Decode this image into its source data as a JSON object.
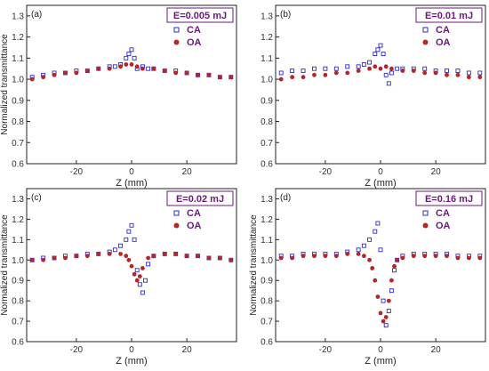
{
  "chart_data": [
    {
      "panel_label": "(a)",
      "type": "scatter",
      "legend_title": "E=0.005 mJ",
      "xlabel": "Z (mm)",
      "ylabel": "Normalized transmittance",
      "xlim": [
        -38,
        38
      ],
      "ylim": [
        0.6,
        1.35
      ],
      "xticks": [
        "-20",
        "0",
        "20"
      ],
      "yticks": [
        "0.6",
        "0.7",
        "0.8",
        "0.9",
        "1.0",
        "1.1",
        "1.2",
        "1.3"
      ],
      "series": [
        {
          "name": "CA",
          "marker": "open-square",
          "color": "#2a2ad0",
          "x": [
            -36,
            -32,
            -28,
            -24,
            -20,
            -16,
            -12,
            -8,
            -6,
            -4,
            -2,
            -1,
            0,
            1,
            2,
            4,
            6,
            8,
            12,
            16,
            20,
            24,
            28,
            32,
            36
          ],
          "y": [
            1.01,
            1.02,
            1.03,
            1.03,
            1.04,
            1.04,
            1.05,
            1.06,
            1.06,
            1.07,
            1.1,
            1.12,
            1.14,
            1.1,
            1.05,
            1.06,
            1.05,
            1.05,
            1.04,
            1.04,
            1.03,
            1.02,
            1.02,
            1.01,
            1.01
          ]
        },
        {
          "name": "OA",
          "marker": "filled-circle",
          "color": "#b5262a",
          "x": [
            -36,
            -32,
            -28,
            -24,
            -20,
            -16,
            -12,
            -8,
            -4,
            -2,
            0,
            2,
            4,
            8,
            12,
            16,
            20,
            24,
            28,
            32,
            36
          ],
          "y": [
            1.0,
            1.01,
            1.02,
            1.03,
            1.03,
            1.04,
            1.05,
            1.05,
            1.06,
            1.07,
            1.07,
            1.06,
            1.05,
            1.05,
            1.04,
            1.03,
            1.03,
            1.02,
            1.02,
            1.01,
            1.01
          ]
        }
      ]
    },
    {
      "panel_label": "(b)",
      "type": "scatter",
      "legend_title": "E=0.01 mJ",
      "xlabel": "Z (mm)",
      "ylabel": "",
      "xlim": [
        -38,
        38
      ],
      "ylim": [
        0.6,
        1.35
      ],
      "xticks": [
        "-20",
        "0",
        "20"
      ],
      "yticks": [
        "0.6",
        "0.7",
        "0.8",
        "0.9",
        "1.0",
        "1.1",
        "1.2",
        "1.3"
      ],
      "series": [
        {
          "name": "CA",
          "marker": "open-square",
          "color": "#2a2ad0",
          "x": [
            -36,
            -32,
            -28,
            -24,
            -20,
            -16,
            -12,
            -8,
            -6,
            -4,
            -2,
            -1,
            0,
            1,
            2,
            3,
            4,
            6,
            8,
            12,
            16,
            20,
            24,
            28,
            32,
            36
          ],
          "y": [
            1.03,
            1.04,
            1.04,
            1.05,
            1.05,
            1.05,
            1.06,
            1.06,
            1.07,
            1.08,
            1.12,
            1.14,
            1.16,
            1.12,
            1.02,
            0.98,
            1.03,
            1.05,
            1.05,
            1.05,
            1.05,
            1.04,
            1.04,
            1.04,
            1.03,
            1.03
          ]
        },
        {
          "name": "OA",
          "marker": "filled-circle",
          "color": "#b5262a",
          "x": [
            -36,
            -32,
            -28,
            -24,
            -20,
            -16,
            -12,
            -8,
            -4,
            -2,
            0,
            2,
            4,
            8,
            12,
            16,
            20,
            24,
            28,
            32,
            36
          ],
          "y": [
            1.0,
            1.01,
            1.01,
            1.02,
            1.02,
            1.03,
            1.03,
            1.04,
            1.05,
            1.06,
            1.05,
            1.06,
            1.05,
            1.04,
            1.04,
            1.03,
            1.03,
            1.02,
            1.02,
            1.01,
            1.01
          ]
        }
      ]
    },
    {
      "panel_label": "(c)",
      "type": "scatter",
      "legend_title": "E=0.02 mJ",
      "xlabel": "Z (mm)",
      "ylabel": "Normalized transmittance",
      "xlim": [
        -38,
        38
      ],
      "ylim": [
        0.6,
        1.35
      ],
      "xticks": [
        "-20",
        "0",
        "20"
      ],
      "yticks": [
        "0.6",
        "0.7",
        "0.8",
        "0.9",
        "1.0",
        "1.1",
        "1.2",
        "1.3"
      ],
      "series": [
        {
          "name": "CA",
          "marker": "open-square",
          "color": "#2a2ad0",
          "x": [
            -36,
            -32,
            -28,
            -24,
            -20,
            -16,
            -12,
            -8,
            -6,
            -4,
            -2,
            -1,
            0,
            1,
            2,
            3,
            4,
            5,
            6,
            8,
            12,
            16,
            20,
            24,
            28,
            32,
            36
          ],
          "y": [
            1.0,
            1.01,
            1.01,
            1.02,
            1.02,
            1.03,
            1.03,
            1.04,
            1.05,
            1.07,
            1.1,
            1.14,
            1.17,
            1.1,
            0.95,
            0.88,
            0.84,
            0.9,
            0.98,
            1.02,
            1.03,
            1.03,
            1.02,
            1.02,
            1.01,
            1.01,
            1.0
          ]
        },
        {
          "name": "OA",
          "marker": "filled-circle",
          "color": "#b5262a",
          "x": [
            -36,
            -32,
            -28,
            -24,
            -20,
            -16,
            -12,
            -8,
            -4,
            -2,
            -1,
            0,
            1,
            2,
            3,
            4,
            6,
            8,
            12,
            16,
            20,
            24,
            28,
            32,
            36
          ],
          "y": [
            1.0,
            1.0,
            1.01,
            1.01,
            1.02,
            1.02,
            1.03,
            1.03,
            1.03,
            1.02,
            1.0,
            0.97,
            0.93,
            0.9,
            0.92,
            0.96,
            1.01,
            1.02,
            1.03,
            1.03,
            1.02,
            1.02,
            1.01,
            1.01,
            1.0
          ]
        }
      ]
    },
    {
      "panel_label": "(d)",
      "type": "scatter",
      "legend_title": "E=0.16 mJ",
      "xlabel": "Z (mm)",
      "ylabel": "Normalized transmittance",
      "xlim": [
        -38,
        38
      ],
      "ylim": [
        0.6,
        1.35
      ],
      "xticks": [
        "-20",
        "0",
        "20"
      ],
      "yticks": [
        "0.6",
        "0.7",
        "0.8",
        "0.9",
        "1.0",
        "1.1",
        "1.2",
        "1.3"
      ],
      "series": [
        {
          "name": "CA",
          "marker": "open-square",
          "color": "#2a2ad0",
          "x": [
            -36,
            -32,
            -28,
            -24,
            -20,
            -16,
            -12,
            -8,
            -6,
            -4,
            -2,
            -1,
            0,
            1,
            2,
            3,
            4,
            5,
            6,
            8,
            12,
            16,
            20,
            24,
            28,
            32,
            36
          ],
          "y": [
            1.02,
            1.02,
            1.03,
            1.03,
            1.03,
            1.03,
            1.04,
            1.05,
            1.07,
            1.1,
            1.14,
            1.18,
            1.05,
            0.8,
            0.68,
            0.75,
            0.85,
            0.95,
            1.0,
            1.02,
            1.03,
            1.03,
            1.03,
            1.03,
            1.02,
            1.02,
            1.02
          ]
        },
        {
          "name": "OA",
          "marker": "filled-circle",
          "color": "#b5262a",
          "x": [
            -36,
            -32,
            -28,
            -24,
            -20,
            -16,
            -12,
            -8,
            -6,
            -4,
            -3,
            -2,
            -1,
            0,
            1,
            2,
            3,
            4,
            5,
            6,
            8,
            12,
            16,
            20,
            24,
            28,
            32,
            36
          ],
          "y": [
            1.01,
            1.01,
            1.02,
            1.02,
            1.02,
            1.02,
            1.03,
            1.03,
            1.02,
            1.0,
            0.96,
            0.9,
            0.82,
            0.74,
            0.7,
            0.72,
            0.8,
            0.9,
            0.97,
            1.0,
            1.01,
            1.02,
            1.02,
            1.02,
            1.02,
            1.01,
            1.01,
            1.01
          ]
        }
      ]
    }
  ]
}
